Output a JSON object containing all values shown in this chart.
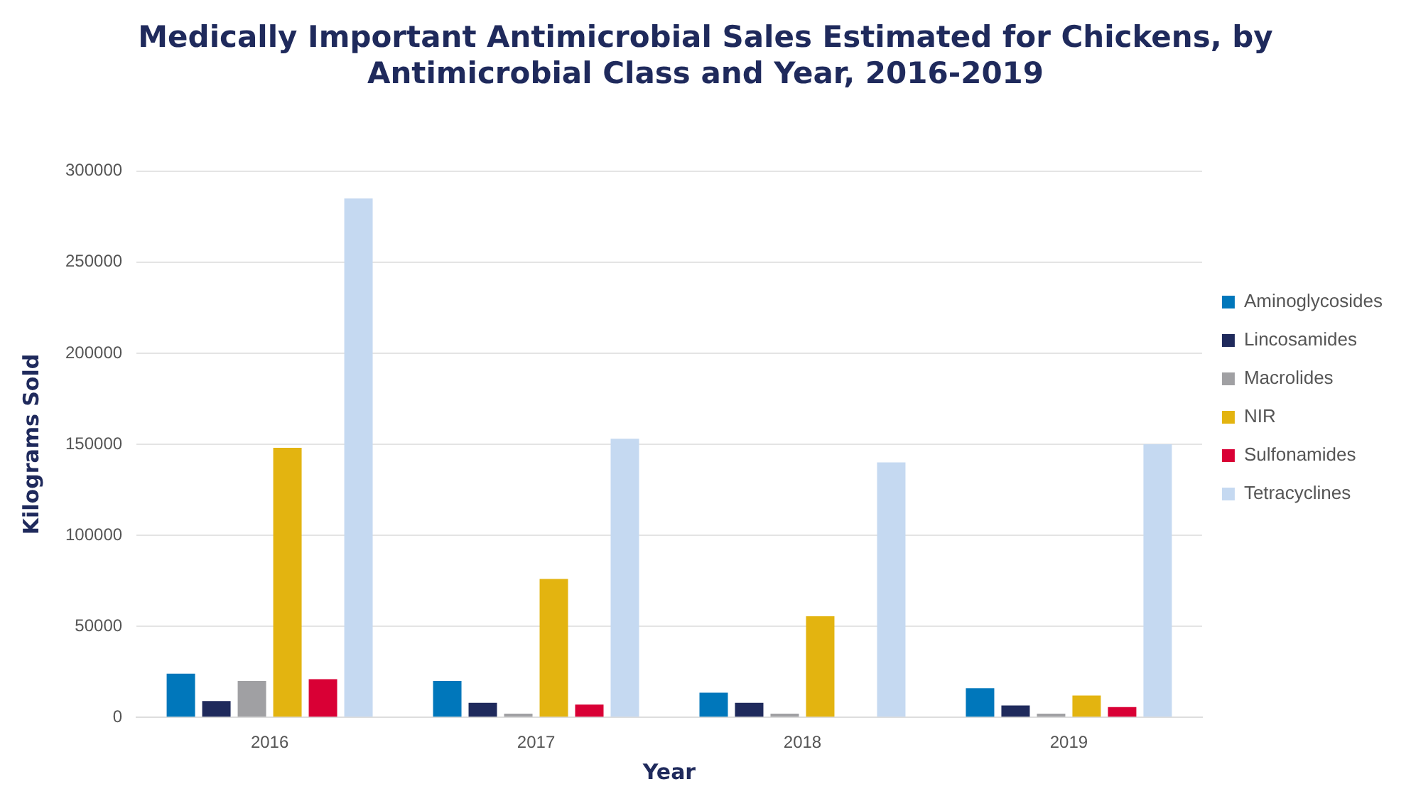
{
  "chart_data": {
    "type": "bar",
    "title": [
      "Medically Important Antimicrobial Sales Estimated for Chickens, by",
      "Antimicrobial Class and Year, 2016-2019"
    ],
    "xlabel": "Year",
    "ylabel": "Kilograms Sold",
    "categories": [
      "2016",
      "2017",
      "2018",
      "2019"
    ],
    "series": [
      {
        "name": "Aminoglycosides",
        "color": "#0077bb",
        "values": [
          24000,
          20000,
          13500,
          16000
        ]
      },
      {
        "name": "Lincosamides",
        "color": "#1f2a5c",
        "values": [
          9000,
          8000,
          8000,
          6500
        ]
      },
      {
        "name": "Macrolides",
        "color": "#a0a0a3",
        "values": [
          20000,
          2000,
          2000,
          2000
        ]
      },
      {
        "name": "NIR",
        "color": "#e3b410",
        "values": [
          148000,
          76000,
          55500,
          12000
        ]
      },
      {
        "name": "Sulfonamides",
        "color": "#d90035",
        "values": [
          21000,
          7000,
          null,
          5600
        ]
      },
      {
        "name": "Tetracyclines",
        "color": "#c5d9f1",
        "values": [
          285000,
          153000,
          140000,
          150000
        ]
      }
    ],
    "ylim": [
      0,
      300000
    ],
    "yticks": [
      0,
      50000,
      100000,
      150000,
      200000,
      250000,
      300000
    ],
    "grid": "y",
    "legend": "right"
  }
}
